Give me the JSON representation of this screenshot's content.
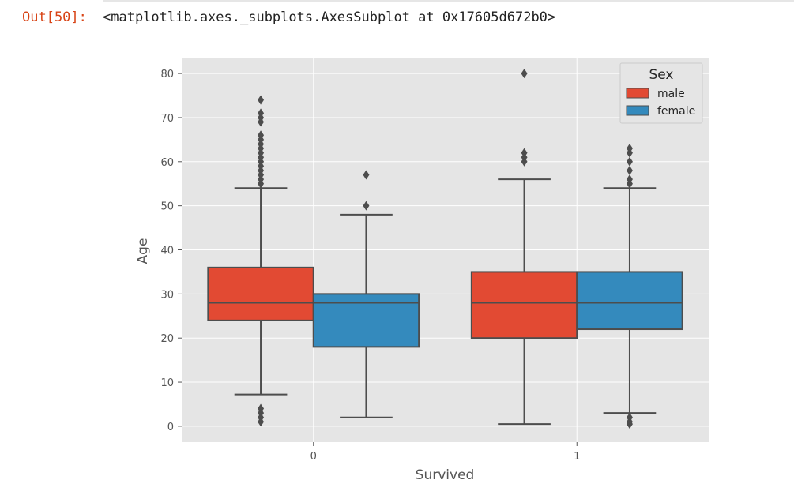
{
  "cell": {
    "prompt": "Out[50]:",
    "output_text": "<matplotlib.axes._subplots.AxesSubplot at 0x17605d672b0>"
  },
  "chart_data": {
    "type": "boxplot",
    "xlabel": "Survived",
    "ylabel": "Age",
    "categories": [
      "0",
      "1"
    ],
    "ylim": [
      -3.6,
      83.6
    ],
    "yticks": [
      0,
      10,
      20,
      30,
      40,
      50,
      60,
      70,
      80
    ],
    "grid": true,
    "legend": {
      "title": "Sex",
      "position": "top-right"
    },
    "colors": {
      "male": "#e24a33",
      "female": "#348abd",
      "background": "#e5e5e5",
      "line": "#4d4d4d"
    },
    "series": [
      {
        "name": "male",
        "boxes": [
          {
            "category": "0",
            "whislo": 7.2,
            "q1": 24,
            "median": 28,
            "q3": 36,
            "whishi": 54,
            "fliers": [
              1,
              2,
              3,
              4,
              55,
              56,
              57,
              58,
              59,
              60,
              61,
              62,
              63,
              64,
              65,
              66,
              69,
              70,
              71,
              74
            ]
          },
          {
            "category": "1",
            "whislo": 0.5,
            "q1": 20,
            "median": 28,
            "q3": 35,
            "whishi": 56,
            "fliers": [
              60,
              61,
              62,
              80
            ]
          }
        ]
      },
      {
        "name": "female",
        "boxes": [
          {
            "category": "0",
            "whislo": 2,
            "q1": 18,
            "median": 28,
            "q3": 30,
            "whishi": 48,
            "fliers": [
              50,
              57
            ]
          },
          {
            "category": "1",
            "whislo": 3,
            "q1": 22,
            "median": 28,
            "q3": 35,
            "whishi": 54,
            "fliers": [
              0.5,
              1,
              2,
              55,
              56,
              58,
              60,
              62,
              63
            ]
          }
        ]
      }
    ]
  }
}
